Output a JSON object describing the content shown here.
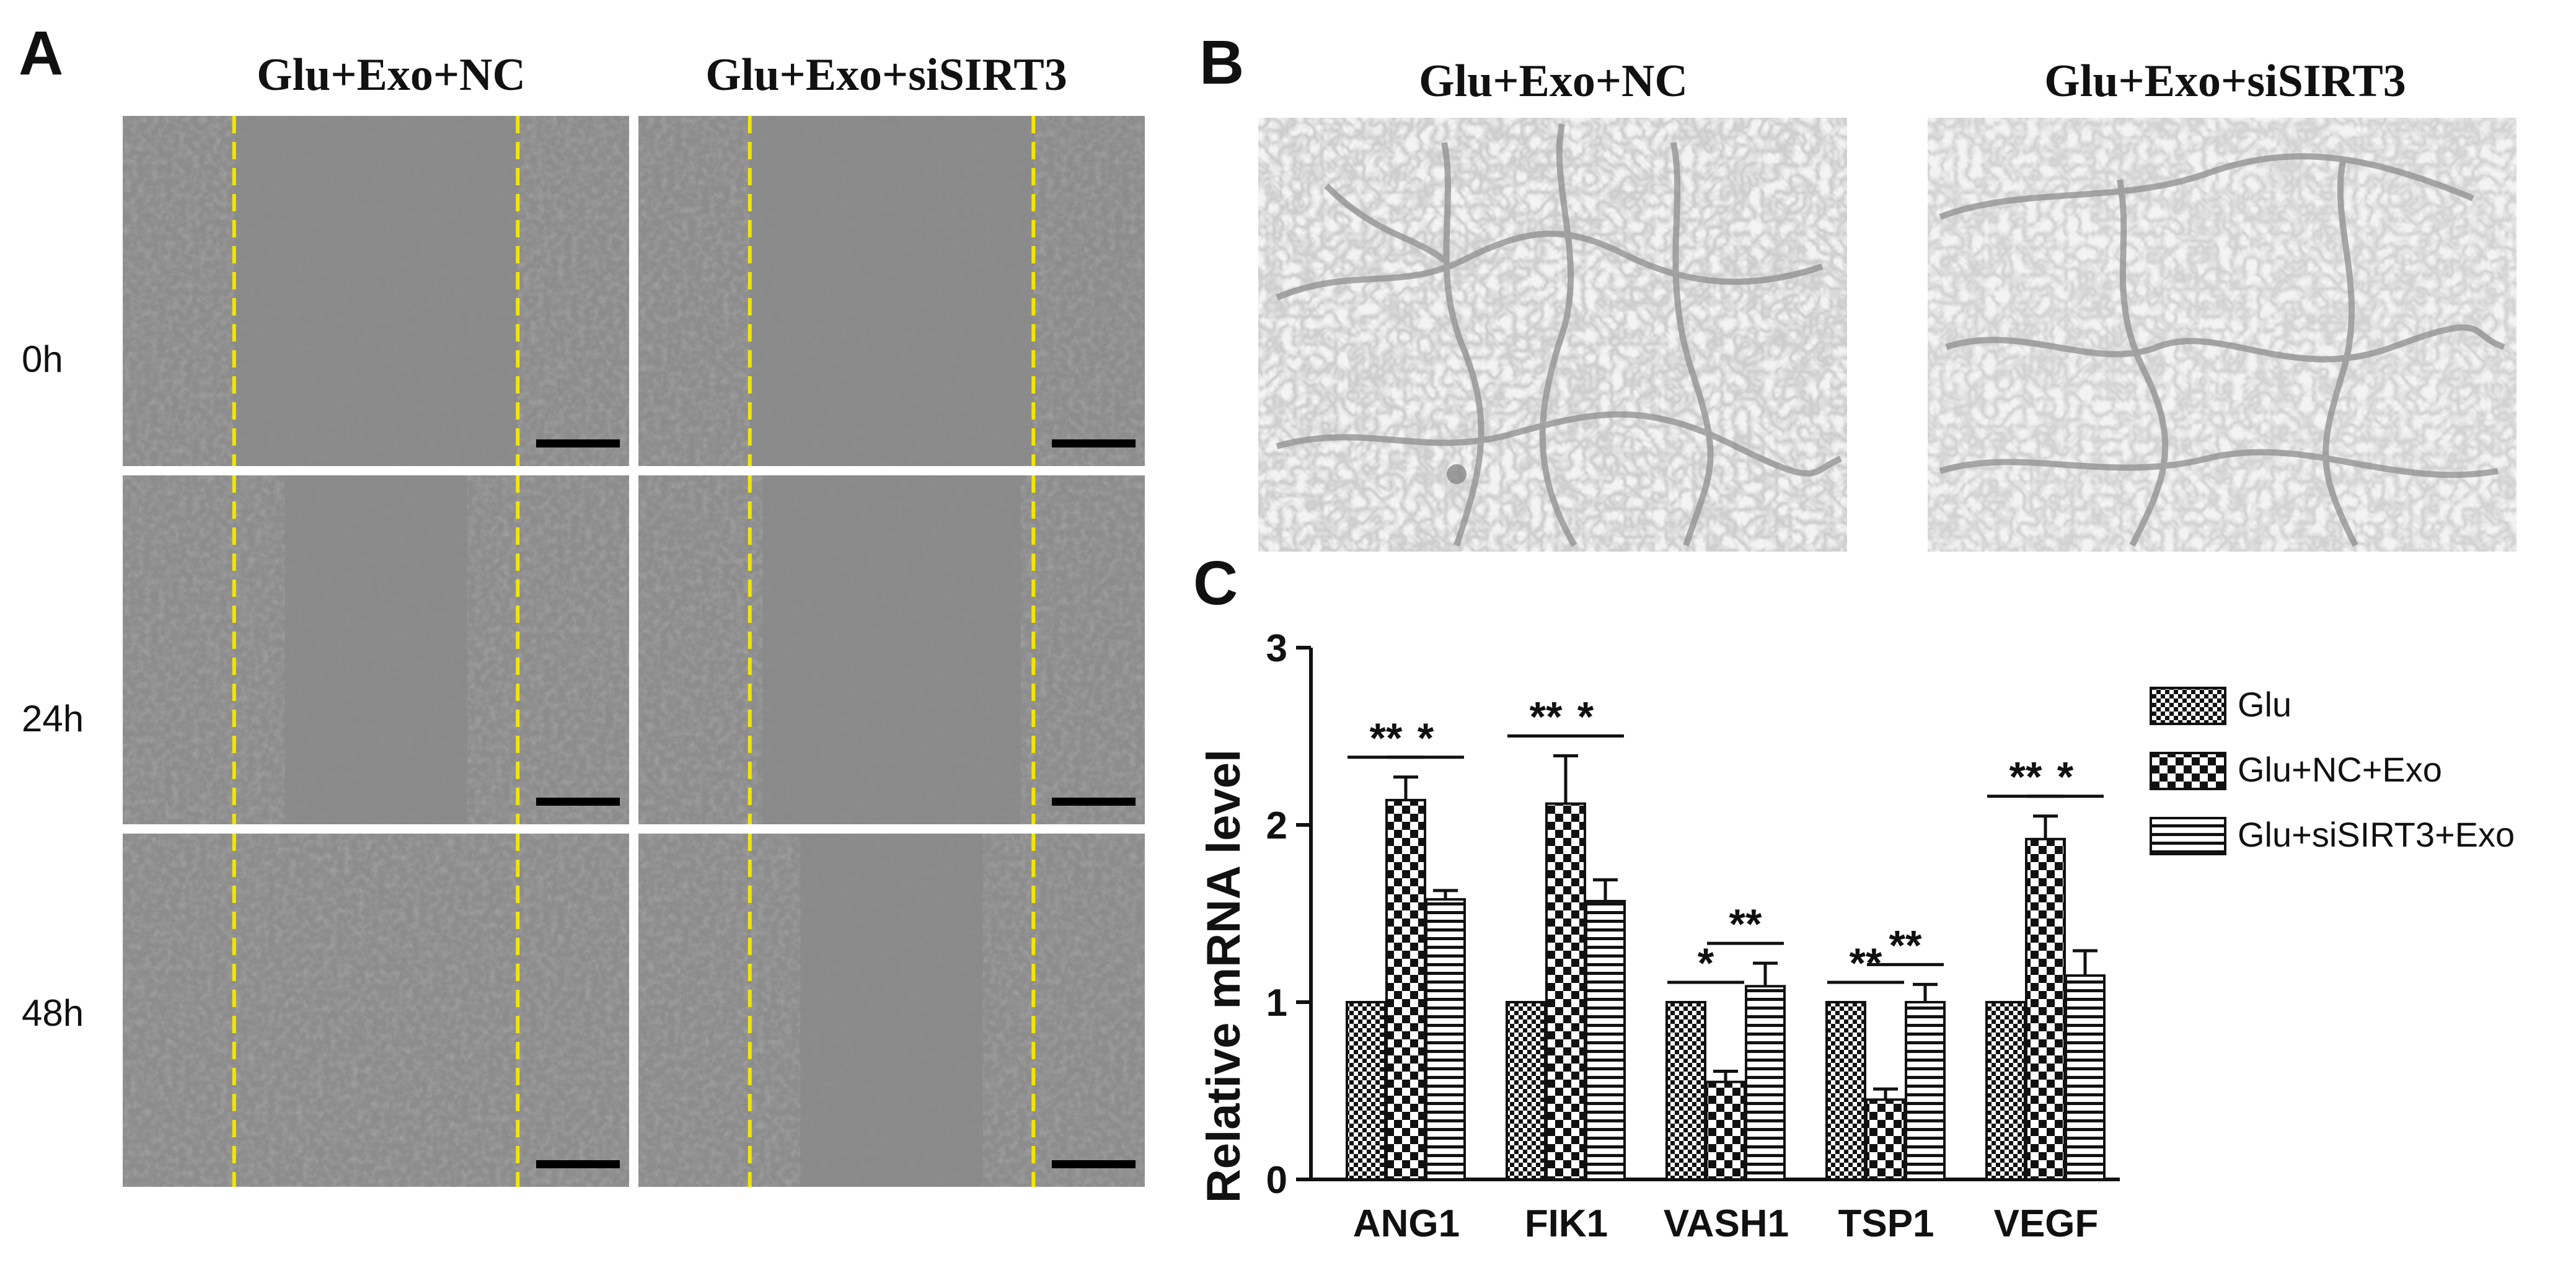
{
  "panel_letters": {
    "a": "A",
    "b": "B",
    "c": "C"
  },
  "panel_a": {
    "column_titles": [
      "Glu+Exo+NC",
      "Glu+Exo+siSIRT3"
    ],
    "row_labels": [
      "0h",
      "24h",
      "48h"
    ],
    "scratch_line_color": "#f2e600",
    "scale_bar_color": "#000000"
  },
  "panel_b": {
    "column_titles": [
      "Glu+Exo+NC",
      "Glu+Exo+siSIRT3"
    ]
  },
  "chart_data": {
    "type": "bar",
    "categories": [
      "ANG1",
      "FIK1",
      "VASH1",
      "TSP1",
      "VEGF"
    ],
    "ylabel": "Relative mRNA level",
    "ylim": [
      0,
      3
    ],
    "yticks": [
      0,
      1,
      2,
      3
    ],
    "grid": false,
    "legend_position": "top-right",
    "series": [
      {
        "name": "Glu",
        "pattern": "fine-checker",
        "values": [
          1.0,
          1.0,
          1.0,
          1.0,
          1.0
        ],
        "errors": [
          0,
          0,
          0,
          0,
          0
        ]
      },
      {
        "name": "Glu+NC+Exo",
        "pattern": "coarse-checker",
        "values": [
          2.14,
          2.12,
          0.55,
          0.45,
          1.92
        ],
        "errors": [
          0.13,
          0.27,
          0.06,
          0.06,
          0.13
        ]
      },
      {
        "name": "Glu+siSIRT3+Exo",
        "pattern": "horizontal-stripes",
        "values": [
          1.58,
          1.57,
          1.09,
          1.0,
          1.15
        ],
        "errors": [
          0.05,
          0.12,
          0.13,
          0.1,
          0.14
        ]
      }
    ],
    "significance": [
      {
        "category": "ANG1",
        "pair": "Glu vs Glu+NC+Exo",
        "label": "**"
      },
      {
        "category": "ANG1",
        "pair": "Glu+NC+Exo vs Glu+siSIRT3+Exo",
        "label": "*"
      },
      {
        "category": "FIK1",
        "pair": "Glu vs Glu+NC+Exo",
        "label": "**"
      },
      {
        "category": "FIK1",
        "pair": "Glu+NC+Exo vs Glu+siSIRT3+Exo",
        "label": "*"
      },
      {
        "category": "VASH1",
        "pair": "Glu vs Glu+NC+Exo",
        "label": "*"
      },
      {
        "category": "VASH1",
        "pair": "Glu+NC+Exo vs Glu+siSIRT3+Exo",
        "label": "**"
      },
      {
        "category": "TSP1",
        "pair": "Glu vs Glu+NC+Exo",
        "label": "**"
      },
      {
        "category": "TSP1",
        "pair": "Glu+NC+Exo vs Glu+siSIRT3+Exo",
        "label": "**"
      },
      {
        "category": "VEGF",
        "pair": "Glu vs Glu+NC+Exo",
        "label": "**"
      },
      {
        "category": "VEGF",
        "pair": "Glu+NC+Exo vs Glu+siSIRT3+Exo",
        "label": "*"
      }
    ]
  }
}
